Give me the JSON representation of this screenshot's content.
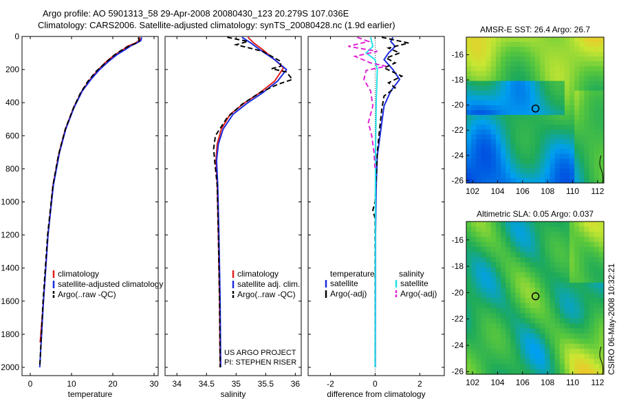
{
  "title_line1": "Argo profile: AO 5901313_58 29-Apr-2008 20080430_123 20.279S 107.036E",
  "title_line2": "Climatology: CARS2006. Satellite-adjusted climatology: synTS_20080428.nc (1.9d earlier)",
  "side_stamp": "CSIRO 06-May-2008 10:32:21",
  "colors": {
    "climatology": "#e0201a",
    "satellite": "#1a2adf",
    "argo": "#000000",
    "sal_satellite": "#22e0e8",
    "sal_argo": "#e020d8"
  },
  "chart_data": [
    {
      "id": "temperature",
      "type": "line",
      "xlabel": "temperature",
      "ylabel": "",
      "xlim": [
        -2,
        31
      ],
      "ylim": [
        2050,
        0
      ],
      "xticks": [
        0,
        10,
        20,
        30
      ],
      "yticks": [
        0,
        200,
        400,
        600,
        800,
        1000,
        1200,
        1400,
        1600,
        1800,
        2000
      ],
      "legend": {
        "position": "lower-right",
        "entries": [
          "climatology",
          "satellite-adjusted climatology",
          "Argo(..raw -QC)"
        ]
      },
      "series": [
        {
          "name": "climatology",
          "style": "solid",
          "color": "#e0201a",
          "points": [
            [
              26.5,
              5
            ],
            [
              26.6,
              20
            ],
            [
              25.5,
              40
            ],
            [
              23.5,
              60
            ],
            [
              22.5,
              80
            ],
            [
              20.5,
              110
            ],
            [
              18.5,
              150
            ],
            [
              16.5,
              200
            ],
            [
              14.5,
              260
            ],
            [
              12.5,
              330
            ],
            [
              10.5,
              430
            ],
            [
              8.5,
              560
            ],
            [
              7,
              700
            ],
            [
              5.5,
              900
            ],
            [
              4.3,
              1200
            ],
            [
              3.2,
              1600
            ],
            [
              2.4,
              1850
            ]
          ]
        },
        {
          "name": "satellite-adjusted climatology",
          "style": "solid",
          "color": "#1a2adf",
          "points": [
            [
              27,
              5
            ],
            [
              26.8,
              25
            ],
            [
              25.8,
              40
            ],
            [
              24.5,
              55
            ],
            [
              23,
              80
            ],
            [
              21,
              110
            ],
            [
              19,
              150
            ],
            [
              16.8,
              200
            ],
            [
              14.7,
              260
            ],
            [
              12.6,
              330
            ],
            [
              10.6,
              430
            ],
            [
              8.6,
              560
            ],
            [
              7.1,
              700
            ],
            [
              5.6,
              900
            ],
            [
              4.3,
              1200
            ],
            [
              3.2,
              1600
            ],
            [
              2.3,
              2000
            ]
          ]
        },
        {
          "name": "Argo(..raw -QC)",
          "style": "dashed",
          "color": "#000000",
          "points": [
            [
              26.2,
              5
            ],
            [
              26.4,
              30
            ],
            [
              25.2,
              45
            ],
            [
              23.8,
              60
            ],
            [
              22,
              85
            ],
            [
              20.5,
              110
            ],
            [
              18.2,
              160
            ],
            [
              16,
              210
            ],
            [
              14,
              270
            ],
            [
              12.2,
              340
            ],
            [
              10.5,
              430
            ],
            [
              8.5,
              560
            ],
            [
              6.8,
              720
            ],
            [
              5.5,
              900
            ],
            [
              4.2,
              1200
            ],
            [
              3.1,
              1600
            ],
            [
              2.3,
              2000
            ]
          ]
        }
      ]
    },
    {
      "id": "salinity",
      "type": "line",
      "xlabel": "salinity",
      "ylabel": "",
      "xlim": [
        33.8,
        36.1
      ],
      "ylim": [
        2050,
        0
      ],
      "xticks": [
        34,
        34.5,
        35,
        35.5,
        36
      ],
      "legend": {
        "position": "lower-right",
        "entries": [
          "climatology",
          "satellite adj. clim.",
          "Argo(..raw -QC)"
        ]
      },
      "annotations": [
        "US ARGO PROJECT",
        "PI: STEPHEN RISER"
      ],
      "series": [
        {
          "name": "climatology",
          "style": "solid",
          "color": "#e0201a",
          "points": [
            [
              35.2,
              5
            ],
            [
              35.3,
              40
            ],
            [
              35.45,
              80
            ],
            [
              35.65,
              140
            ],
            [
              35.8,
              190
            ],
            [
              35.65,
              270
            ],
            [
              35.4,
              340
            ],
            [
              35.15,
              400
            ],
            [
              34.9,
              470
            ],
            [
              34.75,
              560
            ],
            [
              34.68,
              650
            ],
            [
              34.66,
              750
            ],
            [
              34.68,
              900
            ],
            [
              34.7,
              1200
            ],
            [
              34.72,
              1600
            ],
            [
              34.73,
              2000
            ]
          ]
        },
        {
          "name": "satellite adj. clim.",
          "style": "solid",
          "color": "#1a2adf",
          "points": [
            [
              35.1,
              5
            ],
            [
              35.25,
              40
            ],
            [
              35.4,
              80
            ],
            [
              35.65,
              140
            ],
            [
              35.85,
              200
            ],
            [
              35.7,
              270
            ],
            [
              35.45,
              340
            ],
            [
              35.2,
              400
            ],
            [
              34.95,
              470
            ],
            [
              34.78,
              560
            ],
            [
              34.7,
              650
            ],
            [
              34.67,
              750
            ],
            [
              34.69,
              900
            ],
            [
              34.71,
              1200
            ],
            [
              34.73,
              1600
            ],
            [
              34.74,
              2000
            ]
          ]
        },
        {
          "name": "Argo(..raw -QC)",
          "style": "dashed",
          "color": "#000000",
          "points": [
            [
              34.85,
              5
            ],
            [
              35.2,
              30
            ],
            [
              35.0,
              50
            ],
            [
              35.45,
              90
            ],
            [
              35.75,
              150
            ],
            [
              35.75,
              180
            ],
            [
              35.6,
              195
            ],
            [
              35.85,
              215
            ],
            [
              35.95,
              260
            ],
            [
              35.7,
              290
            ],
            [
              35.4,
              340
            ],
            [
              35.1,
              410
            ],
            [
              34.85,
              490
            ],
            [
              34.65,
              600
            ],
            [
              34.62,
              680
            ],
            [
              34.64,
              760
            ],
            [
              34.68,
              900
            ],
            [
              34.7,
              1200
            ],
            [
              34.72,
              1600
            ],
            [
              34.73,
              2000
            ]
          ]
        }
      ]
    },
    {
      "id": "difference",
      "type": "line",
      "xlabel": "difference from climatology",
      "ylabel": "",
      "xlim": [
        -3,
        3.1
      ],
      "ylim": [
        2050,
        0
      ],
      "xticks": [
        -2,
        0,
        2
      ],
      "legend": {
        "position": "lower",
        "entries": [
          "temperature",
          "satellite",
          "Argo(-adj)",
          "salinity",
          "satellite",
          "Argo(-adj)"
        ]
      },
      "series": [
        {
          "name": "temperature satellite",
          "style": "solid",
          "color": "#1a2adf",
          "points": [
            [
              0.8,
              5
            ],
            [
              0.7,
              30
            ],
            [
              0.9,
              60
            ],
            [
              0.6,
              100
            ],
            [
              0.4,
              140
            ],
            [
              0.8,
              200
            ],
            [
              1.1,
              260
            ],
            [
              0.7,
              330
            ],
            [
              0.4,
              420
            ],
            [
              0.3,
              520
            ],
            [
              0.2,
              620
            ],
            [
              0.1,
              720
            ],
            [
              0.05,
              900
            ],
            [
              0.02,
              1200
            ],
            [
              0.01,
              2000
            ]
          ]
        },
        {
          "name": "temperature Argo(-adj)",
          "style": "dashed",
          "color": "#000000",
          "points": [
            [
              0.3,
              5
            ],
            [
              1.5,
              40
            ],
            [
              0.6,
              70
            ],
            [
              1.1,
              100
            ],
            [
              0.5,
              130
            ],
            [
              0.9,
              160
            ],
            [
              0.4,
              190
            ],
            [
              1.2,
              240
            ],
            [
              0.6,
              280
            ],
            [
              0.9,
              310
            ],
            [
              0.4,
              360
            ],
            [
              0.3,
              440
            ],
            [
              0.2,
              560
            ],
            [
              0.1,
              700
            ],
            [
              0.0,
              1000
            ],
            [
              -0.1,
              1050
            ],
            [
              0.0,
              1100
            ],
            [
              0.0,
              2000
            ]
          ]
        },
        {
          "name": "salinity satellite",
          "style": "solid",
          "color": "#22e0e8",
          "points": [
            [
              -0.2,
              5
            ],
            [
              -0.1,
              60
            ],
            [
              -0.4,
              100
            ],
            [
              0.0,
              140
            ],
            [
              0.1,
              200
            ],
            [
              0.05,
              400
            ],
            [
              0.02,
              700
            ],
            [
              0.0,
              2000
            ]
          ]
        },
        {
          "name": "salinity Argo(-adj)",
          "style": "dashed",
          "color": "#e020d8",
          "points": [
            [
              -0.8,
              5
            ],
            [
              -0.3,
              30
            ],
            [
              -1.2,
              60
            ],
            [
              0.1,
              90
            ],
            [
              -0.9,
              120
            ],
            [
              -0.2,
              160
            ],
            [
              0.5,
              180
            ],
            [
              -0.4,
              205
            ],
            [
              -0.5,
              260
            ],
            [
              -0.2,
              330
            ],
            [
              -0.1,
              420
            ],
            [
              -0.3,
              520
            ],
            [
              -0.15,
              600
            ],
            [
              -0.05,
              700
            ],
            [
              0.0,
              800
            ]
          ]
        }
      ]
    },
    {
      "id": "sst-map",
      "type": "heatmap",
      "title": "AMSR-E SST: 26.4 Argo: 26.7",
      "xlim": [
        101.5,
        112.5
      ],
      "ylim": [
        -26.2,
        -14.6
      ],
      "xticks": [
        102,
        104,
        106,
        108,
        110,
        112
      ],
      "yticks": [
        -16,
        -18,
        -20,
        -22,
        -24,
        -26
      ],
      "marker": {
        "lon": 107.036,
        "lat": -20.279
      }
    },
    {
      "id": "sla-map",
      "type": "heatmap",
      "title": "Altimetric SLA: 0.05 Argo: 0.037",
      "xlim": [
        101.5,
        112.5
      ],
      "ylim": [
        -26.2,
        -14.6
      ],
      "xticks": [
        102,
        104,
        106,
        108,
        110,
        112
      ],
      "yticks": [
        -16,
        -18,
        -20,
        -22,
        -24,
        -26
      ],
      "marker": {
        "lon": 107.036,
        "lat": -20.279
      }
    }
  ]
}
